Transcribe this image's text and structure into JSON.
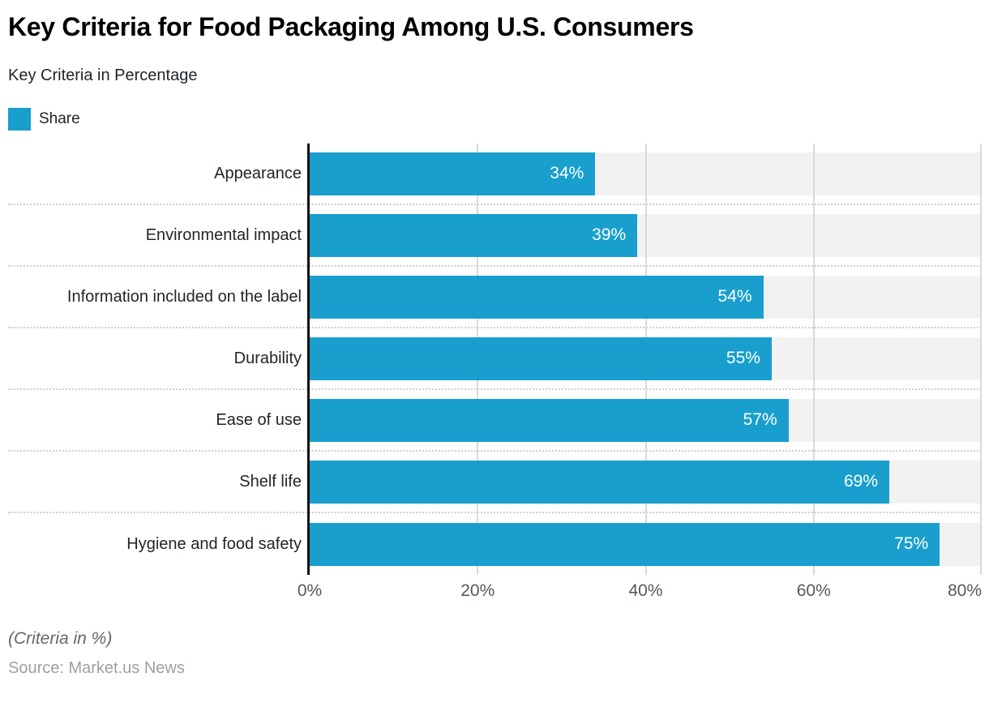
{
  "header": {
    "title": "Key Criteria for Food Packaging Among U.S. Consumers",
    "subtitle": "Key Criteria in Percentage"
  },
  "legend": {
    "items": [
      {
        "label": "Share",
        "color": "#199FCE"
      }
    ]
  },
  "chart_data": {
    "type": "bar",
    "orientation": "horizontal",
    "title": "Key Criteria for Food Packaging Among U.S. Consumers",
    "subtitle": "Key Criteria in Percentage",
    "categories": [
      "Appearance",
      "Environmental impact",
      "Information included on the label",
      "Durability",
      "Ease of use",
      "Shelf life",
      "Hygiene and food safety"
    ],
    "series": [
      {
        "name": "Share",
        "values": [
          34,
          39,
          54,
          55,
          57,
          69,
          75
        ]
      }
    ],
    "value_suffix": "%",
    "data_labels": [
      "34%",
      "39%",
      "54%",
      "55%",
      "57%",
      "69%",
      "75%"
    ],
    "xlim": [
      0,
      80
    ],
    "xticks": [
      0,
      20,
      40,
      60,
      80
    ],
    "xtick_labels": [
      "0%",
      "20%",
      "40%",
      "60%",
      "80%"
    ],
    "legend_position": "top-left",
    "grid": "vertical gridlines at ticks; dotted horizontal row separators",
    "colors": {
      "bar": "#199FCE",
      "track": "#F2F2F2",
      "gridline": "#D9D9D9",
      "axis_line": "#111111"
    }
  },
  "footer": {
    "note": "(Criteria in %)",
    "source": "Source: Market.us News"
  }
}
